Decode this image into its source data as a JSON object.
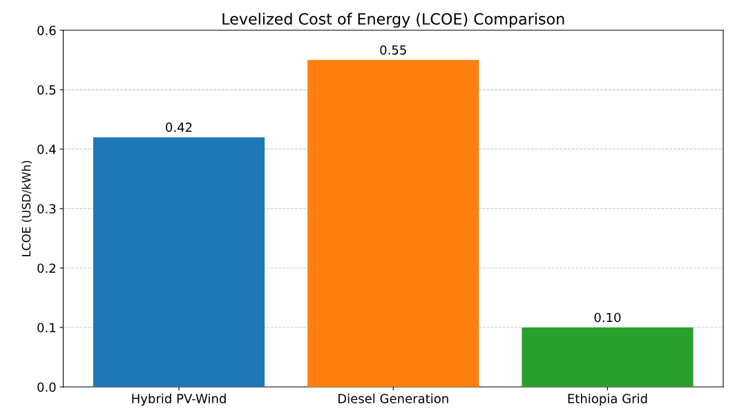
{
  "chart_data": {
    "type": "bar",
    "title": "Levelized Cost of Energy (LCOE) Comparison",
    "ylabel": "LCOE (USD/kWh)",
    "categories": [
      "Hybrid PV-Wind",
      "Diesel Generation",
      "Ethiopia Grid"
    ],
    "values": [
      0.42,
      0.55,
      0.1
    ],
    "colors": [
      "#1f77b4",
      "#ff7f0e",
      "#2ca02c"
    ],
    "value_labels": [
      "0.42",
      "0.55",
      "0.10"
    ],
    "ylim": [
      0,
      0.6
    ],
    "yticks": [
      {
        "value": 0,
        "label": "0.0"
      },
      0.1,
      0.2,
      0.3,
      0.4,
      0.5,
      0.6
    ],
    "grid": "y",
    "line_style": "dashed"
  }
}
